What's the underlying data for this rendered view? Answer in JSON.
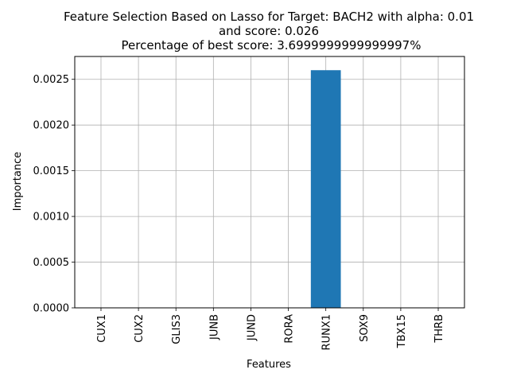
{
  "chart_data": {
    "type": "bar",
    "title_lines": [
      "Feature Selection Based on Lasso for Target: BACH2 with alpha: 0.01",
      "and score: 0.026",
      " Percentage of best score: 3.6999999999999997%"
    ],
    "xlabel": "Features",
    "ylabel": "Importance",
    "categories": [
      "CUX1",
      "CUX2",
      "GLIS3",
      "JUNB",
      "JUND",
      "RORA",
      "RUNX1",
      "SOX9",
      "TBX15",
      "THRB"
    ],
    "values": [
      0,
      0,
      0,
      0,
      0,
      0,
      0.0026,
      0,
      0,
      0
    ],
    "ylim": [
      0,
      0.00275
    ],
    "yticks": [
      0,
      0.0005,
      0.001,
      0.0015,
      0.002,
      0.0025
    ],
    "ytick_labels": [
      "0.0000",
      "0.0005",
      "0.0010",
      "0.0015",
      "0.0020",
      "0.0025"
    ],
    "grid": true,
    "bar_color": "#1f77b4",
    "grid_color": "#b0b0b0"
  }
}
